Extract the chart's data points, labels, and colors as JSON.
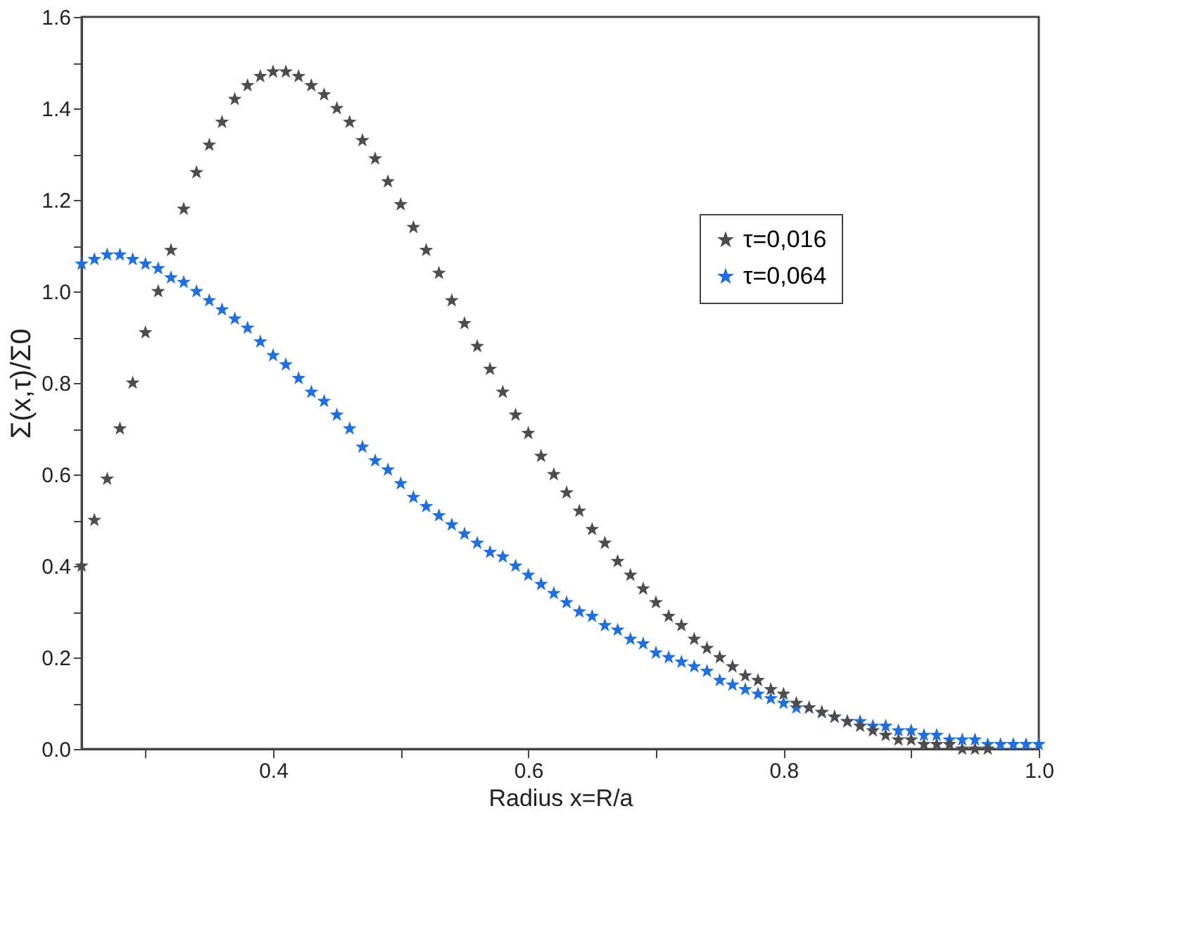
{
  "chart_data": {
    "type": "scatter",
    "xlabel": "Radius x=R/a",
    "ylabel": "Σ(x,τ)/Σ0",
    "marker": "star",
    "legend": "top right",
    "grid": false,
    "xlim": [
      0.25,
      1.0
    ],
    "ylim": [
      0,
      1.6
    ],
    "xticks": [
      {
        "value": 0.3,
        "label": null
      },
      0.4,
      {
        "value": 0.5,
        "label": null
      },
      0.6,
      {
        "value": 0.7,
        "label": null
      },
      0.8,
      {
        "value": 0.9,
        "label": null
      },
      {
        "value": 1.0,
        "label": "1.0"
      }
    ],
    "yticks": [
      {
        "value": 0,
        "label": "0.0"
      },
      {
        "value": 0.1,
        "label": null
      },
      0.2,
      {
        "value": 0.3,
        "label": null
      },
      0.4,
      {
        "value": 0.5,
        "label": null
      },
      0.6,
      {
        "value": 0.7,
        "label": null
      },
      0.8,
      {
        "value": 0.9,
        "label": null
      },
      {
        "value": 1.0,
        "label": "1.0"
      },
      {
        "value": 1.1,
        "label": null
      },
      1.2,
      {
        "value": 1.3,
        "label": null
      },
      1.4,
      {
        "value": 1.5,
        "label": null
      },
      1.6
    ],
    "series": [
      {
        "name": "τ=0,016",
        "color": "#4d4d4d",
        "x": [
          0.25,
          0.26,
          0.27,
          0.28,
          0.29,
          0.3,
          0.31,
          0.32,
          0.33,
          0.34,
          0.35,
          0.36,
          0.37,
          0.38,
          0.39,
          0.4,
          0.41,
          0.42,
          0.43,
          0.44,
          0.45,
          0.46,
          0.47,
          0.48,
          0.49,
          0.5,
          0.51,
          0.52,
          0.53,
          0.54,
          0.55,
          0.56,
          0.57,
          0.58,
          0.59,
          0.6,
          0.61,
          0.62,
          0.63,
          0.64,
          0.65,
          0.66,
          0.67,
          0.68,
          0.69,
          0.7,
          0.71,
          0.72,
          0.73,
          0.74,
          0.75,
          0.76,
          0.77,
          0.78,
          0.79,
          0.8,
          0.81,
          0.82,
          0.83,
          0.84,
          0.85,
          0.86,
          0.87,
          0.88,
          0.89,
          0.9,
          0.91,
          0.92,
          0.93,
          0.94,
          0.95,
          0.96
        ],
        "values": [
          0.4,
          0.5,
          0.59,
          0.7,
          0.8,
          0.91,
          1.0,
          1.09,
          1.18,
          1.26,
          1.32,
          1.37,
          1.42,
          1.45,
          1.47,
          1.48,
          1.48,
          1.47,
          1.45,
          1.43,
          1.4,
          1.37,
          1.33,
          1.29,
          1.24,
          1.19,
          1.14,
          1.09,
          1.04,
          0.98,
          0.93,
          0.88,
          0.83,
          0.78,
          0.73,
          0.69,
          0.64,
          0.6,
          0.56,
          0.52,
          0.48,
          0.45,
          0.41,
          0.38,
          0.35,
          0.32,
          0.29,
          0.27,
          0.24,
          0.22,
          0.2,
          0.18,
          0.16,
          0.15,
          0.13,
          0.12,
          0.1,
          0.09,
          0.08,
          0.07,
          0.06,
          0.05,
          0.04,
          0.03,
          0.02,
          0.02,
          0.01,
          0.01,
          0.01,
          0.0,
          0.0,
          0.0
        ]
      },
      {
        "name": "τ=0,064",
        "color": "#1f6fe0",
        "x": [
          0.25,
          0.26,
          0.27,
          0.28,
          0.29,
          0.3,
          0.31,
          0.32,
          0.33,
          0.34,
          0.35,
          0.36,
          0.37,
          0.38,
          0.39,
          0.4,
          0.41,
          0.42,
          0.43,
          0.44,
          0.45,
          0.46,
          0.47,
          0.48,
          0.49,
          0.5,
          0.51,
          0.52,
          0.53,
          0.54,
          0.55,
          0.56,
          0.57,
          0.58,
          0.59,
          0.6,
          0.61,
          0.62,
          0.63,
          0.64,
          0.65,
          0.66,
          0.67,
          0.68,
          0.69,
          0.7,
          0.71,
          0.72,
          0.73,
          0.74,
          0.75,
          0.76,
          0.77,
          0.78,
          0.79,
          0.8,
          0.81,
          0.82,
          0.83,
          0.84,
          0.85,
          0.86,
          0.87,
          0.88,
          0.89,
          0.9,
          0.91,
          0.92,
          0.93,
          0.94,
          0.95,
          0.96,
          0.97,
          0.98,
          0.99,
          1.0
        ],
        "values": [
          1.06,
          1.07,
          1.08,
          1.08,
          1.07,
          1.06,
          1.05,
          1.03,
          1.02,
          1.0,
          0.98,
          0.96,
          0.94,
          0.92,
          0.89,
          0.86,
          0.84,
          0.81,
          0.78,
          0.76,
          0.73,
          0.7,
          0.66,
          0.63,
          0.61,
          0.58,
          0.55,
          0.53,
          0.51,
          0.49,
          0.47,
          0.45,
          0.43,
          0.42,
          0.4,
          0.38,
          0.36,
          0.34,
          0.32,
          0.3,
          0.29,
          0.27,
          0.26,
          0.24,
          0.23,
          0.21,
          0.2,
          0.19,
          0.18,
          0.17,
          0.15,
          0.14,
          0.13,
          0.12,
          0.11,
          0.1,
          0.09,
          0.09,
          0.08,
          0.07,
          0.06,
          0.06,
          0.05,
          0.05,
          0.04,
          0.04,
          0.03,
          0.03,
          0.02,
          0.02,
          0.02,
          0.01,
          0.01,
          0.01,
          0.01,
          0.01
        ]
      }
    ]
  }
}
